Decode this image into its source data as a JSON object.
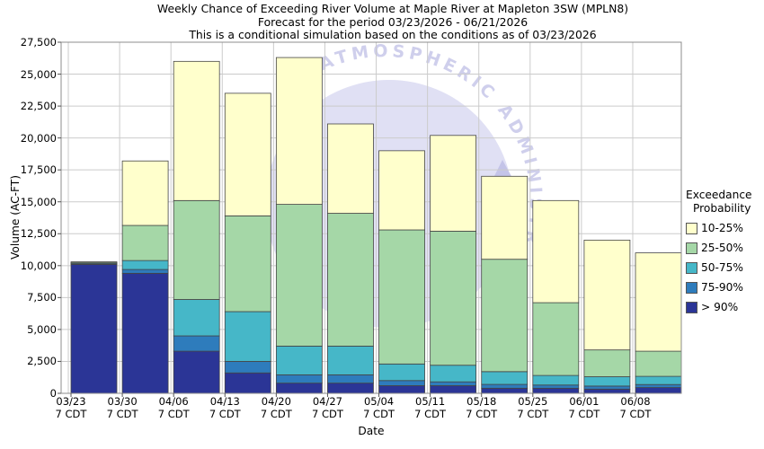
{
  "title": {
    "line1": "Weekly Chance of Exceeding River Volume at Maple River at Mapleton 3SW (MPLN8)",
    "line2": "Forecast for the period 03/23/2026 - 06/21/2026",
    "line3": "This is a conditional simulation based on the conditions as of 03/23/2026"
  },
  "axes": {
    "y_label": "Volume (AC-FT)",
    "x_label": "Date",
    "x_tick_sublabel": "7 CDT",
    "y_tick_labels": [
      "0",
      "2,500",
      "5,000",
      "7,500",
      "10,000",
      "12,500",
      "15,000",
      "17,500",
      "20,000",
      "22,500",
      "25,000",
      "27,500"
    ]
  },
  "legend": {
    "title_line1": "Exceedance",
    "title_line2": "Probability",
    "items": [
      {
        "label": "10-25%",
        "color": "#FFFFCC"
      },
      {
        "label": "25-50%",
        "color": "#A5D7A7"
      },
      {
        "label": "50-75%",
        "color": "#46B7C8"
      },
      {
        "label": "75-90%",
        "color": "#2E7CBC"
      },
      {
        "label": "> 90%",
        "color": "#2B3596"
      }
    ]
  },
  "watermark": {
    "arc_text": "ND ATMOSPHERIC ADMINISTR",
    "text_color": "#cfcfec",
    "dome_color": "#d8d8f1",
    "gull_color": "#c4c4e8"
  },
  "chart_data": {
    "type": "bar",
    "stacked": true,
    "title": "Weekly Chance of Exceeding River Volume at Maple River at Mapleton 3SW (MPLN8)",
    "xlabel": "Date",
    "ylabel": "Volume (AC-FT)",
    "ylim": [
      0,
      27500
    ],
    "y_tick_step": 2500,
    "grid": true,
    "legend_position": "right",
    "categories": [
      "03/23",
      "03/30",
      "04/06",
      "04/13",
      "04/20",
      "04/27",
      "05/04",
      "05/11",
      "05/18",
      "05/25",
      "06/01",
      "06/08"
    ],
    "series": [
      {
        "name": "> 90%",
        "color": "#2B3596",
        "values": [
          10100,
          9400,
          3300,
          1600,
          800,
          800,
          600,
          600,
          400,
          400,
          330,
          450
        ]
      },
      {
        "name": "75-90%",
        "color": "#2E7CBC",
        "values": [
          50,
          300,
          1200,
          900,
          650,
          650,
          400,
          300,
          300,
          250,
          240,
          240
        ]
      },
      {
        "name": "50-75%",
        "color": "#46B7C8",
        "values": [
          70,
          700,
          2850,
          3900,
          2250,
          2250,
          1300,
          1300,
          1000,
          750,
          730,
          640
        ]
      },
      {
        "name": "25-50%",
        "color": "#A5D7A7",
        "values": [
          80,
          2750,
          7750,
          7500,
          11100,
          10400,
          10500,
          10500,
          8800,
          5700,
          2100,
          1970
        ]
      },
      {
        "name": "10-25%",
        "color": "#FFFFCC",
        "values": [
          0,
          5050,
          10900,
          9600,
          11500,
          7000,
          6200,
          7500,
          6500,
          8000,
          8600,
          7700
        ]
      }
    ],
    "totals": [
      10300,
      18200,
      26000,
      23500,
      26300,
      21100,
      19000,
      20200,
      17000,
      15100,
      12000,
      11000
    ]
  }
}
